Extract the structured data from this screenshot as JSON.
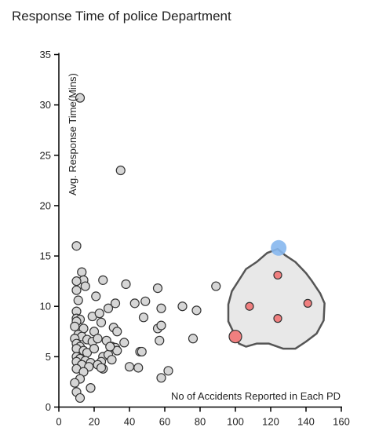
{
  "chart_data": {
    "type": "scatter",
    "title": "Response Time of police Department",
    "xlabel": "No of Accidents Reported in Each PD",
    "ylabel": "Avg. Response Time(Mins)",
    "xlim": [
      0,
      160
    ],
    "ylim": [
      0,
      35
    ],
    "xticks": [
      0,
      20,
      40,
      60,
      80,
      100,
      120,
      140,
      160
    ],
    "yticks": [
      0,
      5,
      10,
      15,
      20,
      25,
      30,
      35
    ],
    "grid": false,
    "colors": {
      "point_fill": "#d6d6d6",
      "point_stroke": "#333333",
      "lasso_selected_fill": "#f07f7f",
      "lasso_anchor_fill": "#86b7ee",
      "lasso_fill": "#e8e8e8",
      "lasso_stroke": "#555555"
    },
    "lasso_polygon": [
      [
        124,
        15.7
      ],
      [
        118,
        15.3
      ],
      [
        112,
        14.4
      ],
      [
        106,
        13.7
      ],
      [
        102,
        12.6
      ],
      [
        98,
        11.5
      ],
      [
        96,
        10.2
      ],
      [
        96,
        8.5
      ],
      [
        99,
        7.4
      ],
      [
        102,
        6.3
      ],
      [
        106,
        6.0
      ],
      [
        112,
        6.3
      ],
      [
        119,
        6.3
      ],
      [
        127,
        5.8
      ],
      [
        134,
        5.8
      ],
      [
        140,
        6.5
      ],
      [
        146,
        7.3
      ],
      [
        150,
        8.6
      ],
      [
        150.5,
        10.3
      ],
      [
        148,
        11.3
      ],
      [
        143,
        12.6
      ],
      [
        140,
        13.3
      ],
      [
        134,
        14.4
      ],
      [
        128,
        15.1
      ]
    ],
    "lasso_anchor": [
      124.5,
      15.8
    ],
    "lasso_selected_points": [
      [
        124,
        13.1
      ],
      [
        108,
        10.0
      ],
      [
        141,
        10.3
      ],
      [
        124,
        8.8
      ],
      [
        100,
        7.0
      ]
    ],
    "points": [
      [
        12,
        30.7
      ],
      [
        35,
        23.5
      ],
      [
        10,
        16.0
      ],
      [
        13,
        13.4
      ],
      [
        14,
        12.6
      ],
      [
        10,
        12.5
      ],
      [
        15,
        12.0
      ],
      [
        25,
        12.6
      ],
      [
        38,
        12.2
      ],
      [
        56,
        11.8
      ],
      [
        89,
        12.0
      ],
      [
        10,
        11.6
      ],
      [
        11,
        10.6
      ],
      [
        21,
        11.0
      ],
      [
        32,
        10.3
      ],
      [
        43,
        10.3
      ],
      [
        49,
        10.5
      ],
      [
        58,
        9.8
      ],
      [
        70,
        10.0
      ],
      [
        78,
        9.6
      ],
      [
        10,
        9.5
      ],
      [
        19,
        9.0
      ],
      [
        23,
        9.3
      ],
      [
        28,
        9.8
      ],
      [
        10,
        8.8
      ],
      [
        12,
        8.7
      ],
      [
        10,
        8.5
      ],
      [
        48,
        8.9
      ],
      [
        24,
        8.4
      ],
      [
        9,
        8.0
      ],
      [
        14,
        7.8
      ],
      [
        20,
        7.5
      ],
      [
        31,
        7.9
      ],
      [
        33,
        7.5
      ],
      [
        56,
        7.8
      ],
      [
        58,
        8.1
      ],
      [
        11,
        7.2
      ],
      [
        13,
        7.0
      ],
      [
        9,
        6.8
      ],
      [
        16,
        6.7
      ],
      [
        19,
        6.5
      ],
      [
        22,
        6.8
      ],
      [
        27,
        6.6
      ],
      [
        30,
        6.0
      ],
      [
        32,
        5.9
      ],
      [
        37,
        6.4
      ],
      [
        57,
        6.6
      ],
      [
        76,
        6.8
      ],
      [
        10,
        6.3
      ],
      [
        12,
        6.0
      ],
      [
        10,
        5.8
      ],
      [
        14,
        5.6
      ],
      [
        16,
        5.4
      ],
      [
        20,
        5.8
      ],
      [
        25,
        5.0
      ],
      [
        28,
        5.2
      ],
      [
        33,
        5.6
      ],
      [
        46,
        5.5
      ],
      [
        47,
        5.5
      ],
      [
        10,
        5.0
      ],
      [
        12,
        4.8
      ],
      [
        15,
        4.6
      ],
      [
        18,
        4.4
      ],
      [
        24,
        4.5
      ],
      [
        30,
        4.7
      ],
      [
        10,
        4.5
      ],
      [
        13,
        4.2
      ],
      [
        17,
        4.0
      ],
      [
        22,
        4.2
      ],
      [
        25,
        3.8
      ],
      [
        40,
        4.0
      ],
      [
        45,
        3.9
      ],
      [
        10,
        3.8
      ],
      [
        14,
        3.5
      ],
      [
        24,
        3.9
      ],
      [
        62,
        3.6
      ],
      [
        12,
        2.8
      ],
      [
        58,
        2.9
      ],
      [
        9,
        2.4
      ],
      [
        18,
        1.9
      ],
      [
        10,
        1.5
      ],
      [
        12,
        0.9
      ],
      [
        29,
        6.0
      ]
    ]
  }
}
